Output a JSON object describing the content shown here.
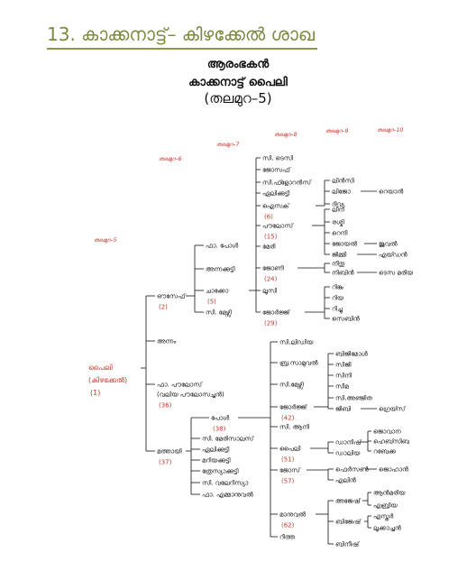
{
  "header": {
    "title": "13. കാക്കനാട്ട്– കിഴക്കേൽ ശാഖ"
  },
  "subheading": {
    "line1": "ആരംഭകൻ",
    "line2": "കാക്കനാട്ട് പൈലി",
    "line3": "(തലമുറ–5)"
  },
  "generations": [
    "തലമുറ–5",
    "തലമുറ–6",
    "തലമുറ–7",
    "തലമുറ–8",
    "തലമുറ–9",
    "തലമുറ–10"
  ],
  "root": {
    "name1": "പൈലി",
    "name2": "(കിഴക്കേൽ)",
    "num": "(1)"
  },
  "tree": {
    "g6": [
      {
        "name": "ഔസേഫ്",
        "num": "(2)"
      },
      {
        "name": "അന്നം"
      },
      {
        "name": "ഫാ. പൗലോസ്",
        "name2": "(വലിയ പൗലോസച്ചൻ)",
        "num": "(36)"
      },
      {
        "name": "മത്തായി",
        "num": "(37)"
      }
    ],
    "g7_ouseph": [
      {
        "name": "ഫാ. പോൾ"
      },
      {
        "name": "അന്നക്കുട്ടി"
      },
      {
        "name": "ചാക്കോ",
        "num": "(5)"
      },
      {
        "name": "സി. മേഴ്സി"
      }
    ],
    "g7_mathai": [
      {
        "name": "പോൾ",
        "num": "(38)"
      },
      {
        "name": "സി. മേരിസാലസ്"
      },
      {
        "name": "ഏലിക്കുട്ടി"
      },
      {
        "name": "മറിയക്കുട്ടി"
      },
      {
        "name": "ത്രേസ്യാക്കുട്ടി"
      },
      {
        "name": "സി. വലേറിസ്യാ"
      },
      {
        "name": "ഫാ. എമ്മാനുവൽ"
      }
    ],
    "g8_chacko": [
      {
        "name": "സി. ടെസി"
      },
      {
        "name": "ജോസഫ്"
      },
      {
        "name": "സി.ഫ്ളോറൻസ്"
      },
      {
        "name": "ഏലിക്കുട്ടി"
      },
      {
        "name": "ഐസക്",
        "num": "(6)"
      },
      {
        "name": "പൗലോസ്",
        "num": "(15)"
      },
      {
        "name": "മേരി"
      },
      {
        "name": "ജോണി",
        "num": "(24)"
      },
      {
        "name": "ലൂസി"
      },
      {
        "name": "ജോർജ്ജ്",
        "num": "(29)"
      }
    ],
    "g9_isaac": [
      {
        "name": "ലിൻസി"
      },
      {
        "name": "ലിജോ"
      },
      {
        "name": "ദിവ്യ"
      }
    ],
    "g9_paulose": [
      {
        "name": "ലീന"
      },
      {
        "name": "രശ്മി"
      },
      {
        "name": "റെനി"
      },
      {
        "name": "ജോയൽ"
      },
      {
        "name": "ജിമ്മി"
      }
    ],
    "g9_johny": [
      {
        "name": "നീതു"
      },
      {
        "name": "നിബിൻ"
      }
    ],
    "g9_george": [
      {
        "name": "റിങ്കു"
      },
      {
        "name": "റിയ"
      },
      {
        "name": "റിച്ചു"
      },
      {
        "name": "സെബിൻ"
      }
    ],
    "g10": {
      "lijo": "റെയാൻ",
      "joel": "ജുവൽ",
      "jimmy": "എയ്ഡൻ",
      "nibin": "ടെസ മരിയ"
    },
    "g8_paul": [
      {
        "name": "സി.ലിഡിയ"
      },
      {
        "name": "ബ്ര.സാമുവൽ"
      },
      {
        "name": "സി.മേഴ്സി"
      },
      {
        "name": "ജോർജ്ജ്",
        "num": "(42)"
      },
      {
        "name": "സി. ആനി"
      },
      {
        "name": "പൈലി",
        "num": "(51)"
      },
      {
        "name": "ജോസ്",
        "num": "(57)"
      },
      {
        "name": "മാനുവൽ",
        "num": "(62)"
      },
      {
        "name": "റീത്ത"
      }
    ],
    "g9_george2": [
      {
        "name": "ബിജിമോൾ"
      },
      {
        "name": "സിജി"
      },
      {
        "name": "സിനി"
      },
      {
        "name": "സീമ"
      },
      {
        "name": "സി.അഞ്ജിത"
      },
      {
        "name": "ജിബി"
      }
    ],
    "g10_jibi": "ഗ്രെയ്സ്",
    "g9_paily": [
      {
        "name": "ഡാനിഷ്"
      },
      {
        "name": "ഡാലിയ"
      }
    ],
    "g10_danish": [
      {
        "name": "ജൊവാന"
      },
      {
        "name": "ഹെബ്സിബ"
      },
      {
        "name": "റബേക്ക"
      }
    ],
    "g9_jose": [
      {
        "name": "ഫെർസൺ"
      },
      {
        "name": "എലിൻ"
      }
    ],
    "g10_ferson": "ജൊഹാൻ",
    "g9_manuel": [
      {
        "name": "അജേഷ്"
      },
      {
        "name": "ബിജേഷ്"
      },
      {
        "name": "ബിനീഷ്"
      }
    ],
    "g10_ajesh": [
      {
        "name": "ആൻമരിയ"
      },
      {
        "name": "എബ്രിയ"
      }
    ],
    "g10_bijesh": [
      {
        "name": "എസ്തർ"
      },
      {
        "name": "ലൂക്കാച്ചൻ"
      }
    ]
  }
}
